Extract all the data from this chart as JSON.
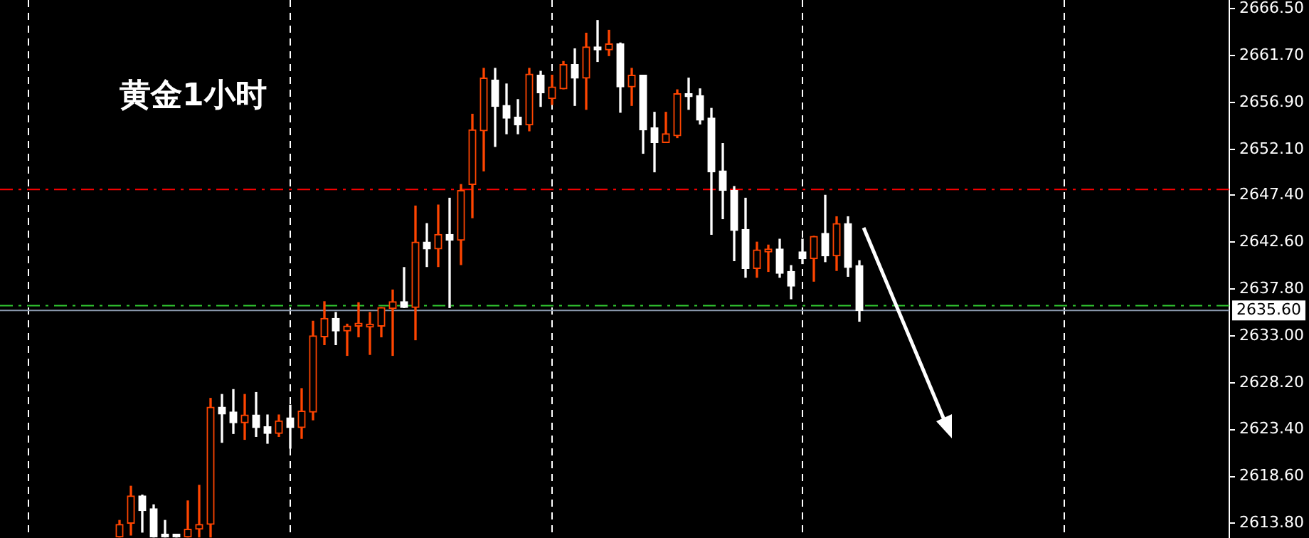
{
  "chart_data": {
    "type": "candlestick",
    "title": "黄金1小时",
    "categories": [
      null,
      null,
      null,
      null,
      null,
      null,
      null,
      null,
      null,
      null,
      null,
      null,
      null,
      null,
      null,
      null,
      null,
      null,
      null,
      null,
      null,
      null,
      null,
      null,
      null,
      null,
      null,
      null,
      null,
      null,
      null,
      null,
      null,
      null,
      null,
      null,
      null,
      null,
      null,
      null,
      null,
      null,
      null,
      null,
      null,
      null,
      null,
      null,
      null,
      null,
      null,
      null,
      null,
      null,
      null,
      null,
      null,
      null,
      null,
      null,
      null,
      null,
      null,
      null,
      null,
      null,
      null,
      null,
      null,
      null,
      null,
      null,
      null,
      null,
      null,
      null,
      null,
      null,
      null,
      null,
      null,
      null,
      null,
      null,
      null,
      null,
      null,
      null,
      null,
      null,
      null,
      null,
      null,
      null,
      null,
      null,
      null,
      null,
      null,
      null,
      null,
      null,
      null,
      null,
      null,
      null,
      null,
      null
    ],
    "ohlc": [
      null,
      null,
      null,
      null,
      null,
      null,
      null,
      null,
      null,
      null,
      [
        2612.4,
        2614.1,
        2612.4,
        2613.7
      ],
      [
        2613.8,
        2617.6,
        2612.6,
        2616.6
      ],
      [
        2616.6,
        2616.7,
        2612.9,
        2615.1
      ],
      [
        2615.3,
        2615.7,
        2612.4,
        2612.4
      ],
      [
        2612.5,
        2614.1,
        2612.4,
        2612.4
      ],
      [
        2612.5,
        2612.6,
        2612.4,
        2612.4
      ],
      [
        2612.4,
        2616.1,
        2612.4,
        2613.2
      ],
      [
        2613.2,
        2617.7,
        2612.4,
        2613.7
      ],
      [
        2613.7,
        2626.6,
        2612.4,
        2625.7
      ],
      [
        2625.7,
        2627.0,
        2622.1,
        2625.0
      ],
      [
        2625.2,
        2627.5,
        2623.0,
        2624.1
      ],
      [
        2624.1,
        2627.0,
        2622.4,
        2624.9
      ],
      [
        2624.9,
        2627.2,
        2622.7,
        2623.6
      ],
      [
        2623.7,
        2624.9,
        2622.0,
        2623.0
      ],
      [
        2623.0,
        2624.9,
        2622.7,
        2624.3
      ],
      [
        2624.6,
        2625.9,
        2621.5,
        2623.6
      ],
      [
        2623.6,
        2627.6,
        2622.5,
        2625.3
      ],
      [
        2625.2,
        2634.5,
        2624.4,
        2633.0
      ],
      [
        2632.9,
        2636.5,
        2632.1,
        2634.8
      ],
      [
        2634.8,
        2635.4,
        2632.1,
        2633.5
      ],
      [
        2633.5,
        2634.2,
        2631.0,
        2634.0
      ],
      [
        2634.0,
        2636.4,
        2632.9,
        2634.1
      ],
      [
        2633.9,
        2635.4,
        2631.1,
        2634.2
      ],
      [
        2634.0,
        2635.9,
        2632.9,
        2635.9
      ],
      [
        2635.8,
        2637.7,
        2631.0,
        2636.5
      ],
      [
        2636.5,
        2640.0,
        2635.9,
        2635.9
      ],
      [
        2635.9,
        2646.3,
        2632.6,
        2642.6
      ],
      [
        2642.6,
        2644.5,
        2640.1,
        2641.9
      ],
      [
        2641.9,
        2646.4,
        2640.1,
        2643.4
      ],
      [
        2643.4,
        2647.1,
        2635.9,
        2642.8
      ],
      [
        2642.8,
        2648.5,
        2640.3,
        2647.9
      ],
      [
        2648.5,
        2655.7,
        2645.1,
        2654.1
      ],
      [
        2654.0,
        2660.4,
        2649.9,
        2659.4
      ],
      [
        2659.2,
        2660.4,
        2652.4,
        2656.5
      ],
      [
        2656.6,
        2658.8,
        2653.7,
        2655.3
      ],
      [
        2655.4,
        2657.2,
        2653.7,
        2654.6
      ],
      [
        2654.6,
        2660.4,
        2654.0,
        2659.8
      ],
      [
        2659.7,
        2660.1,
        2656.5,
        2657.9
      ],
      [
        2657.3,
        2659.7,
        2656.7,
        2658.5
      ],
      [
        2658.3,
        2661.1,
        2658.3,
        2660.8
      ],
      [
        2660.8,
        2662.4,
        2656.6,
        2659.4
      ],
      [
        2659.4,
        2664.0,
        2656.2,
        2662.6
      ],
      [
        2662.6,
        2665.3,
        2661.1,
        2662.3
      ],
      [
        2662.3,
        2664.3,
        2661.7,
        2662.9
      ],
      [
        2662.9,
        2663.0,
        2655.9,
        2658.5
      ],
      [
        2658.5,
        2660.4,
        2656.6,
        2659.7
      ],
      [
        2659.7,
        2659.7,
        2651.7,
        2654.1
      ],
      [
        2654.3,
        2655.9,
        2649.8,
        2652.8
      ],
      [
        2652.8,
        2655.9,
        2652.8,
        2653.7
      ],
      [
        2653.5,
        2658.2,
        2653.3,
        2657.8
      ],
      [
        2657.8,
        2659.4,
        2656.2,
        2657.5
      ],
      [
        2657.6,
        2658.3,
        2654.7,
        2655.1
      ],
      [
        2655.3,
        2656.3,
        2643.4,
        2649.8
      ],
      [
        2649.9,
        2652.7,
        2645.0,
        2647.9
      ],
      [
        2647.9,
        2648.3,
        2640.7,
        2643.8
      ],
      [
        2643.9,
        2647.1,
        2639.0,
        2639.9
      ],
      [
        2639.9,
        2642.6,
        2639.0,
        2641.8
      ],
      [
        2641.6,
        2642.3,
        2639.6,
        2641.9
      ],
      [
        2641.9,
        2642.9,
        2639.0,
        2639.4
      ],
      [
        2639.6,
        2640.2,
        2636.8,
        2638.1
      ],
      [
        2641.6,
        2642.9,
        2640.4,
        2640.9
      ],
      [
        2640.9,
        2643.2,
        2638.6,
        2643.2
      ],
      [
        2643.5,
        2647.4,
        2640.6,
        2641.2
      ],
      [
        2641.2,
        2645.2,
        2639.7,
        2644.5
      ],
      [
        2644.5,
        2645.2,
        2639.1,
        2640.0
      ],
      [
        2640.2,
        2640.7,
        2634.5,
        2635.6
      ],
      null,
      null,
      null,
      null,
      null,
      null,
      null,
      null,
      null,
      null,
      null,
      null,
      null,
      null,
      null,
      null,
      null,
      null,
      null,
      null,
      null,
      null,
      null,
      null,
      null,
      null,
      null,
      null,
      null,
      null,
      null,
      null
    ],
    "colors": [
      null,
      null,
      null,
      null,
      null,
      null,
      null,
      null,
      null,
      null,
      "#ff4500",
      "#ff4500",
      "#ffffff",
      "#ffffff",
      "#ffffff",
      "#ffffff",
      "#ff4500",
      "#ff4500",
      "#ff4500",
      "#ffffff",
      "#ffffff",
      "#ff4500",
      "#ffffff",
      "#ffffff",
      "#ff4500",
      "#ffffff",
      "#ff4500",
      "#ff4500",
      "#ff4500",
      "#ffffff",
      "#ff4500",
      "#ff4500",
      "#ff4500",
      "#ff4500",
      "#ff4500",
      "#ffffff",
      "#ff4500",
      "#ffffff",
      "#ff4500",
      "#ffffff",
      "#ff4500",
      "#ff4500",
      "#ff4500",
      "#ffffff",
      "#ffffff",
      "#ffffff",
      "#ff4500",
      "#ffffff",
      "#ff4500",
      "#ff4500",
      "#ffffff",
      "#ff4500",
      "#ffffff",
      "#ff4500",
      "#ffffff",
      "#ff4500",
      "#ffffff",
      "#ffffff",
      "#ff4500",
      "#ff4500",
      "#ffffff",
      "#ffffff",
      "#ffffff",
      "#ffffff",
      "#ffffff",
      "#ffffff",
      "#ff4500",
      "#ff4500",
      "#ffffff",
      "#ffffff",
      "#ffffff",
      "#ff4500",
      "#ffffff",
      "#ff4500",
      "#ffffff",
      "#ffffff",
      null,
      null,
      null,
      null,
      null,
      null,
      null,
      null,
      null,
      null,
      null,
      null,
      null,
      null,
      null,
      null,
      null,
      null,
      null,
      null,
      null,
      null,
      null,
      null,
      null,
      null,
      null,
      null,
      null,
      null,
      null,
      null
    ],
    "ylim": [
      2612.3,
      2667.4
    ],
    "yticks": [
      {
        "value": 2666.5,
        "label": "2666.50"
      },
      {
        "value": 2661.7,
        "label": "2661.70"
      },
      {
        "value": 2656.9,
        "label": "2656.90"
      },
      {
        "value": 2652.1,
        "label": "2652.10"
      },
      {
        "value": 2647.4,
        "label": "2647.40"
      },
      {
        "value": 2642.6,
        "label": "2642.60"
      },
      {
        "value": 2637.8,
        "label": "2637.80"
      },
      {
        "value": 2633.0,
        "label": "2633.00"
      },
      {
        "value": 2628.2,
        "label": "2628.20"
      },
      {
        "value": 2623.4,
        "label": "2623.40"
      },
      {
        "value": 2618.6,
        "label": "2618.60"
      },
      {
        "value": 2613.8,
        "label": "2613.80"
      }
    ],
    "ref_lines": [
      {
        "axis": "y",
        "value": 2648.0,
        "color": "#ff0000",
        "line_style": "dashed"
      },
      {
        "axis": "y",
        "value": 2636.1,
        "color": "#32cd32",
        "line_style": "dashed"
      },
      {
        "axis": "y",
        "value": 2635.6,
        "label": "2635.60",
        "color": "#8c9bb0",
        "line_style": "solid"
      }
    ],
    "grid": "x",
    "tick_labels": "y"
  }
}
